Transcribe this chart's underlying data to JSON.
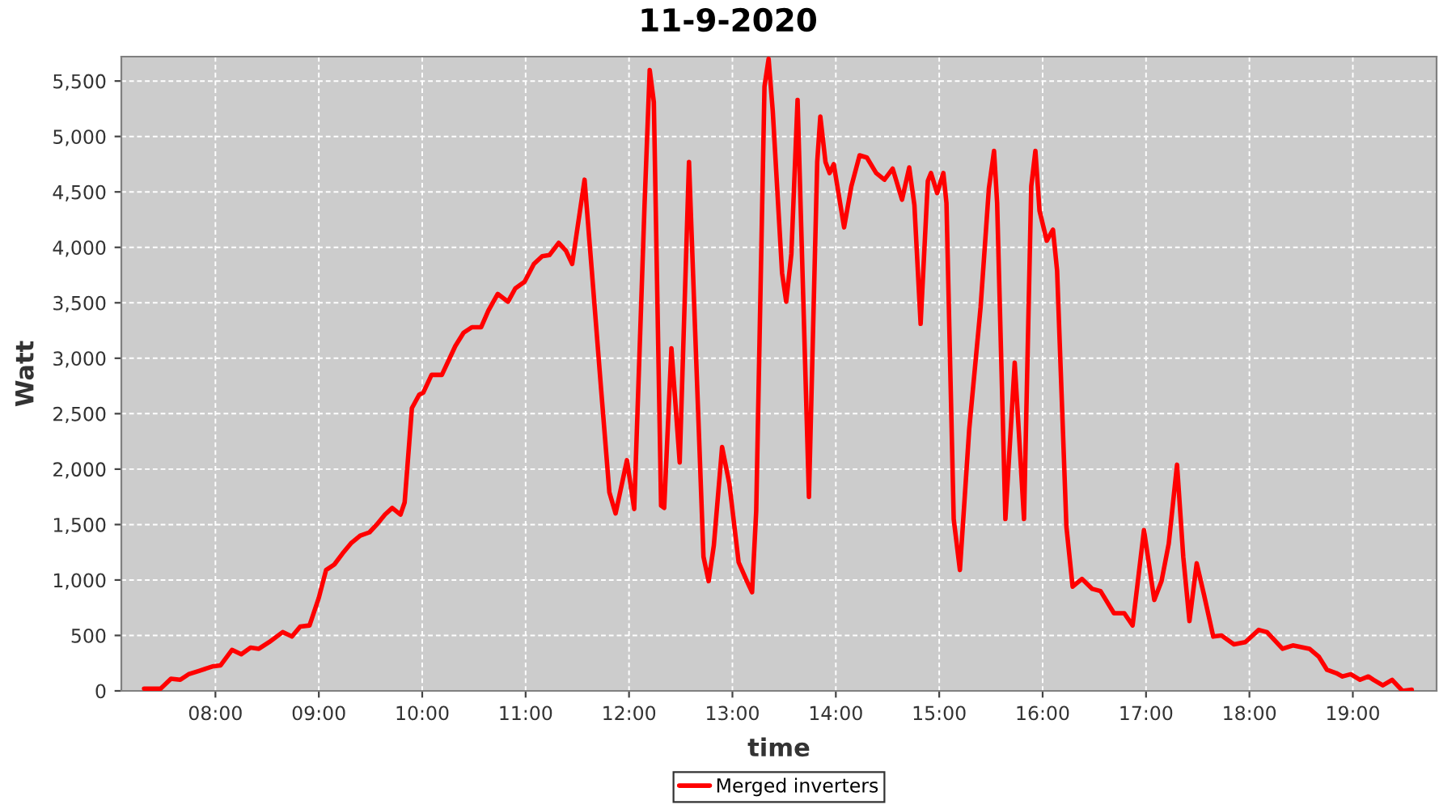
{
  "chart_data": {
    "type": "line",
    "title": "11-9-2020",
    "xlabel": "time",
    "ylabel": "Watt",
    "x": [
      7.31,
      7.47,
      7.57,
      7.66,
      7.74,
      7.84,
      7.97,
      8.05,
      8.16,
      8.25,
      8.34,
      8.42,
      8.52,
      8.65,
      8.74,
      8.82,
      8.91,
      9.0,
      9.07,
      9.15,
      9.23,
      9.31,
      9.4,
      9.49,
      9.56,
      9.64,
      9.71,
      9.79,
      9.83,
      9.9,
      9.97,
      10.01,
      10.09,
      10.19,
      10.32,
      10.4,
      10.48,
      10.57,
      10.64,
      10.73,
      10.83,
      10.9,
      10.99,
      11.08,
      11.16,
      11.23,
      11.32,
      11.39,
      11.45,
      11.57,
      11.64,
      11.73,
      11.81,
      11.87,
      11.98,
      12.05,
      12.15,
      12.2,
      12.24,
      12.31,
      12.34,
      12.41,
      12.49,
      12.58,
      12.64,
      12.72,
      12.77,
      12.82,
      12.9,
      12.97,
      13.06,
      13.14,
      13.19,
      13.23,
      13.31,
      13.35,
      13.39,
      13.48,
      13.52,
      13.57,
      13.63,
      13.74,
      13.82,
      13.85,
      13.9,
      13.94,
      13.98,
      14.08,
      14.15,
      14.23,
      14.3,
      14.39,
      14.47,
      14.55,
      14.64,
      14.71,
      14.76,
      14.82,
      14.89,
      14.92,
      14.98,
      15.04,
      15.07,
      15.14,
      15.2,
      15.29,
      15.4,
      15.48,
      15.53,
      15.56,
      15.64,
      15.73,
      15.82,
      15.89,
      15.93,
      15.97,
      16.04,
      16.1,
      16.14,
      16.23,
      16.29,
      16.38,
      16.48,
      16.56,
      16.69,
      16.79,
      16.87,
      16.98,
      17.08,
      17.15,
      17.22,
      17.3,
      17.36,
      17.42,
      17.49,
      17.56,
      17.65,
      17.73,
      17.85,
      17.96,
      18.09,
      18.17,
      18.32,
      18.42,
      18.58,
      18.67,
      18.75,
      18.84,
      18.9,
      18.98,
      19.07,
      19.15,
      19.2,
      19.29,
      19.38,
      19.48,
      19.57
    ],
    "series": [
      {
        "name": "Merged inverters",
        "color": "#ff0000",
        "values": [
          20,
          20,
          110,
          100,
          150,
          180,
          220,
          230,
          370,
          330,
          390,
          380,
          440,
          530,
          490,
          580,
          590,
          840,
          1090,
          1140,
          1240,
          1330,
          1400,
          1430,
          1500,
          1590,
          1650,
          1590,
          1700,
          2550,
          2670,
          2690,
          2850,
          2850,
          3110,
          3230,
          3280,
          3280,
          3430,
          3580,
          3510,
          3630,
          3690,
          3850,
          3920,
          3930,
          4040,
          3970,
          3850,
          4610,
          3790,
          2720,
          1790,
          1600,
          2080,
          1640,
          4380,
          5600,
          5310,
          1670,
          1650,
          3090,
          2060,
          4770,
          3230,
          1210,
          990,
          1310,
          2200,
          1870,
          1160,
          990,
          890,
          1620,
          5450,
          5700,
          5230,
          3770,
          3510,
          3940,
          5330,
          1750,
          4770,
          5180,
          4770,
          4670,
          4750,
          4180,
          4550,
          4830,
          4810,
          4670,
          4610,
          4710,
          4430,
          4720,
          4380,
          3310,
          4600,
          4670,
          4490,
          4670,
          4400,
          1550,
          1090,
          2360,
          3460,
          4530,
          4870,
          4400,
          1550,
          2960,
          1550,
          4550,
          4870,
          4330,
          4060,
          4160,
          3790,
          1480,
          940,
          1010,
          920,
          900,
          700,
          700,
          590,
          1450,
          820,
          990,
          1330,
          2040,
          1210,
          630,
          1150,
          870,
          490,
          500,
          420,
          440,
          550,
          530,
          380,
          410,
          380,
          310,
          190,
          160,
          130,
          150,
          100,
          130,
          100,
          50,
          100,
          0,
          10
        ]
      }
    ],
    "xlim": [
      7.09,
      19.81
    ],
    "ylim": [
      0,
      5720
    ],
    "xticks": [
      {
        "value": 8,
        "label": "08:00"
      },
      {
        "value": 9,
        "label": "09:00"
      },
      {
        "value": 10,
        "label": "10:00"
      },
      {
        "value": 11,
        "label": "11:00"
      },
      {
        "value": 12,
        "label": "12:00"
      },
      {
        "value": 13,
        "label": "13:00"
      },
      {
        "value": 14,
        "label": "14:00"
      },
      {
        "value": 15,
        "label": "15:00"
      },
      {
        "value": 16,
        "label": "16:00"
      },
      {
        "value": 17,
        "label": "17:00"
      },
      {
        "value": 18,
        "label": "18:00"
      },
      {
        "value": 19,
        "label": "19:00"
      }
    ],
    "yticks": [
      0,
      500,
      {
        "value": 1000,
        "label": "1,000"
      },
      {
        "value": 1500,
        "label": "1,500"
      },
      {
        "value": 2000,
        "label": "2,000"
      },
      {
        "value": 2500,
        "label": "2,500"
      },
      {
        "value": 3000,
        "label": "3,000"
      },
      {
        "value": 3500,
        "label": "3,500"
      },
      {
        "value": 4000,
        "label": "4,000"
      },
      {
        "value": 4500,
        "label": "4,500"
      },
      {
        "value": 5000,
        "label": "5,000"
      },
      {
        "value": 5500,
        "label": "5,500"
      }
    ],
    "grid": true,
    "legend": "bottom",
    "line_style": "solid"
  }
}
